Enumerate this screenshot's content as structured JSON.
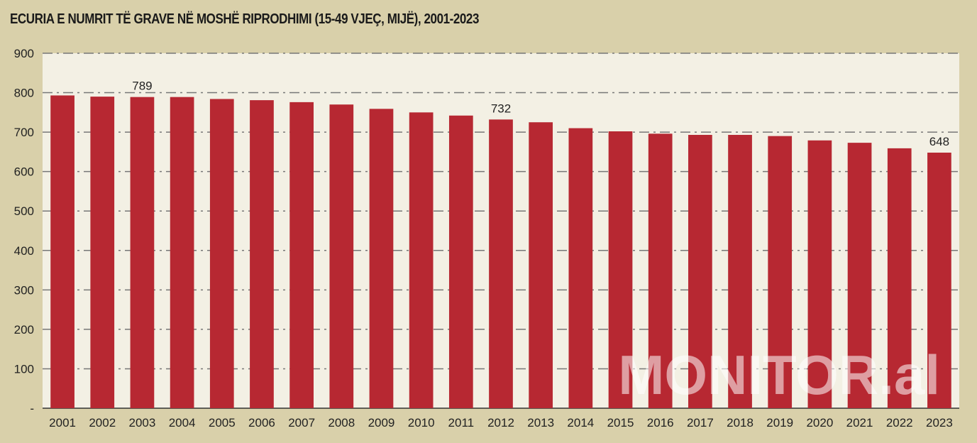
{
  "chart_data": {
    "type": "bar",
    "title": "ECURIA E NUMRIT TË GRAVE NË MOSHË RIPRODHIMI  (15-49 VJEÇ, MIJË), 2001-2023",
    "xlabel": "",
    "ylabel": "",
    "ylim": [
      0,
      900
    ],
    "yticks": [
      "-",
      "100",
      "200",
      "300",
      "400",
      "500",
      "600",
      "700",
      "800",
      "900"
    ],
    "grid": true,
    "categories": [
      "2001",
      "2002",
      "2003",
      "2004",
      "2005",
      "2006",
      "2007",
      "2008",
      "2009",
      "2010",
      "2011",
      "2012",
      "2013",
      "2014",
      "2015",
      "2016",
      "2017",
      "2018",
      "2019",
      "2020",
      "2021",
      "2022",
      "2023"
    ],
    "values": [
      793,
      790,
      789,
      789,
      784,
      781,
      776,
      770,
      759,
      750,
      742,
      732,
      725,
      710,
      702,
      696,
      693,
      693,
      690,
      679,
      673,
      659,
      648
    ],
    "data_labels": {
      "2003": "789",
      "2012": "732",
      "2023": "648"
    },
    "bar_color": "#b72832",
    "plot_background": "#f3f0e4",
    "watermark": "MONITOR.al"
  }
}
